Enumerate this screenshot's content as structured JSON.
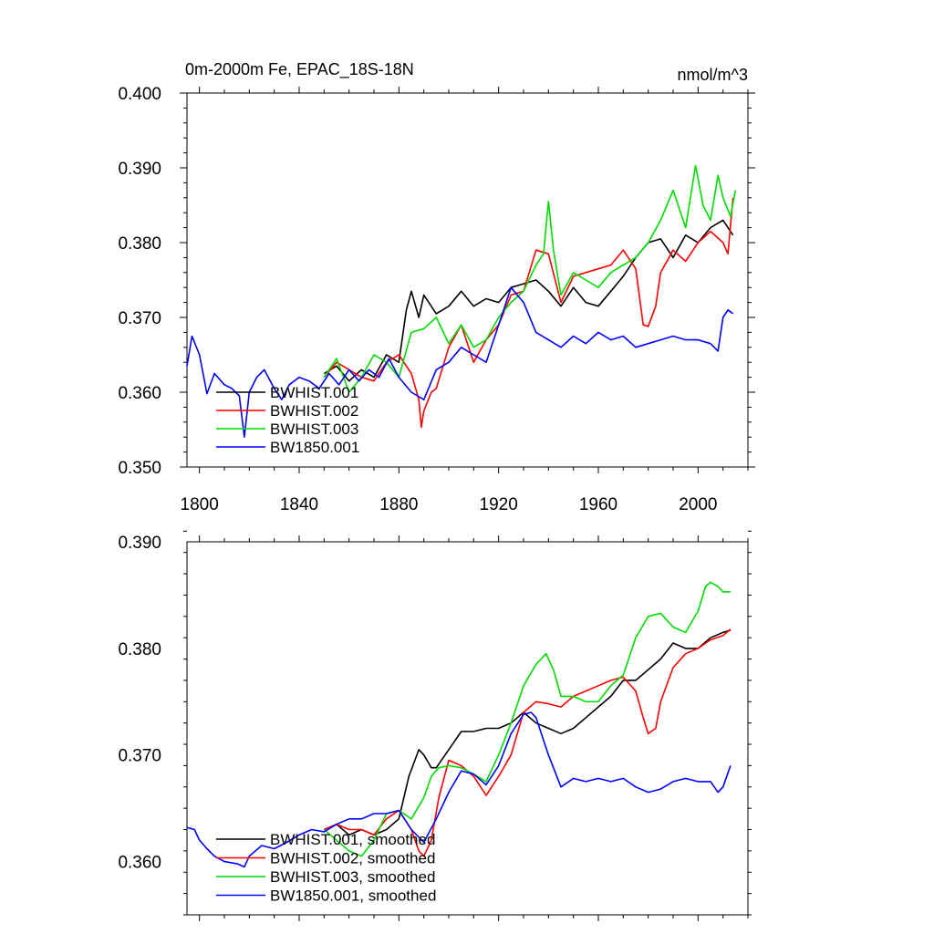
{
  "chart_data": [
    {
      "type": "line",
      "title": "0m-2000m Fe, EPAC_18S-18N",
      "units": "nmol/m^3",
      "xlim": [
        1795,
        2020
      ],
      "ylim": [
        0.35,
        0.4
      ],
      "xticks": [
        1800,
        1840,
        1880,
        1920,
        1960,
        2000
      ],
      "xtick_labels": [
        "1800",
        "1840",
        "1880",
        "1920",
        "1960",
        "2000"
      ],
      "yticks": [
        0.35,
        0.36,
        0.37,
        0.38,
        0.39,
        0.4
      ],
      "ytick_labels": [
        "0.350",
        "0.360",
        "0.370",
        "0.380",
        "0.390",
        "0.400"
      ],
      "legend_position": "bottom-left",
      "series": [
        {
          "name": "BWHIST.001",
          "color": "#000000",
          "x": [
            1850,
            1855,
            1860,
            1865,
            1870,
            1875,
            1880,
            1883,
            1885,
            1888,
            1890,
            1895,
            1900,
            1905,
            1910,
            1915,
            1920,
            1925,
            1930,
            1935,
            1940,
            1945,
            1950,
            1955,
            1960,
            1965,
            1970,
            1975,
            1980,
            1985,
            1990,
            1995,
            2000,
            2005,
            2010,
            2014
          ],
          "y": [
            0.3625,
            0.3635,
            0.3615,
            0.363,
            0.362,
            0.365,
            0.364,
            0.371,
            0.3735,
            0.37,
            0.373,
            0.3705,
            0.3715,
            0.3735,
            0.3715,
            0.3725,
            0.372,
            0.374,
            0.3745,
            0.375,
            0.3735,
            0.3715,
            0.374,
            0.372,
            0.3715,
            0.3735,
            0.3755,
            0.378,
            0.38,
            0.3805,
            0.378,
            0.381,
            0.38,
            0.382,
            0.383,
            0.381
          ]
        },
        {
          "name": "BWHIST.002",
          "color": "#ff0000",
          "x": [
            1850,
            1855,
            1860,
            1865,
            1870,
            1875,
            1880,
            1885,
            1888,
            1889,
            1890,
            1893,
            1895,
            1900,
            1905,
            1910,
            1915,
            1920,
            1925,
            1930,
            1935,
            1940,
            1945,
            1950,
            1955,
            1960,
            1965,
            1970,
            1975,
            1978,
            1980,
            1983,
            1985,
            1990,
            1995,
            2000,
            2005,
            2010,
            2012,
            2014
          ],
          "y": [
            0.362,
            0.364,
            0.363,
            0.362,
            0.3615,
            0.364,
            0.365,
            0.3625,
            0.359,
            0.3553,
            0.3575,
            0.36,
            0.3605,
            0.366,
            0.369,
            0.364,
            0.367,
            0.369,
            0.373,
            0.3735,
            0.379,
            0.3785,
            0.372,
            0.3755,
            0.376,
            0.3765,
            0.377,
            0.379,
            0.3765,
            0.369,
            0.3688,
            0.3715,
            0.376,
            0.379,
            0.3775,
            0.38,
            0.3815,
            0.38,
            0.3785,
            0.386
          ]
        },
        {
          "name": "BWHIST.003",
          "color": "#00dd00",
          "x": [
            1850,
            1855,
            1860,
            1865,
            1870,
            1875,
            1880,
            1885,
            1890,
            1895,
            1900,
            1905,
            1910,
            1915,
            1920,
            1925,
            1930,
            1935,
            1938,
            1940,
            1942,
            1945,
            1950,
            1955,
            1960,
            1965,
            1970,
            1975,
            1980,
            1985,
            1990,
            1995,
            1999,
            2002,
            2005,
            2008,
            2010,
            2013,
            2015
          ],
          "y": [
            0.362,
            0.3645,
            0.36,
            0.362,
            0.365,
            0.364,
            0.362,
            0.368,
            0.3685,
            0.37,
            0.3665,
            0.369,
            0.366,
            0.367,
            0.37,
            0.372,
            0.3735,
            0.377,
            0.3785,
            0.3855,
            0.379,
            0.373,
            0.376,
            0.375,
            0.374,
            0.376,
            0.377,
            0.378,
            0.38,
            0.383,
            0.387,
            0.382,
            0.3903,
            0.385,
            0.383,
            0.389,
            0.386,
            0.3835,
            0.387
          ]
        },
        {
          "name": "BW1850.001",
          "color": "#0000ff",
          "x": [
            1795,
            1797,
            1800,
            1803,
            1806,
            1810,
            1813,
            1816,
            1818,
            1820,
            1823,
            1826,
            1830,
            1833,
            1836,
            1840,
            1844,
            1848,
            1852,
            1856,
            1860,
            1864,
            1868,
            1872,
            1876,
            1880,
            1885,
            1890,
            1895,
            1900,
            1905,
            1910,
            1915,
            1920,
            1925,
            1930,
            1935,
            1940,
            1945,
            1950,
            1955,
            1960,
            1965,
            1970,
            1975,
            1980,
            1985,
            1990,
            1995,
            2000,
            2005,
            2008,
            2010,
            2012,
            2014
          ],
          "y": [
            0.3635,
            0.3675,
            0.365,
            0.3598,
            0.3625,
            0.361,
            0.3605,
            0.3595,
            0.354,
            0.36,
            0.362,
            0.363,
            0.3605,
            0.359,
            0.361,
            0.362,
            0.3615,
            0.3605,
            0.3625,
            0.361,
            0.363,
            0.3615,
            0.363,
            0.362,
            0.3645,
            0.362,
            0.36,
            0.359,
            0.363,
            0.364,
            0.366,
            0.365,
            0.364,
            0.369,
            0.374,
            0.372,
            0.368,
            0.367,
            0.366,
            0.3675,
            0.3665,
            0.368,
            0.367,
            0.3675,
            0.366,
            0.3665,
            0.367,
            0.3675,
            0.367,
            0.367,
            0.3665,
            0.3655,
            0.37,
            0.371,
            0.3705
          ]
        }
      ]
    },
    {
      "type": "line",
      "title": "",
      "xlim": [
        1795,
        2020
      ],
      "ylim": [
        0.355,
        0.39
      ],
      "xticks": [
        1800,
        1840,
        1880,
        1920,
        1960,
        2000
      ],
      "yticks": [
        0.36,
        0.37,
        0.38,
        0.39
      ],
      "ytick_labels": [
        "0.360",
        "0.370",
        "0.380",
        "0.390"
      ],
      "legend_position": "bottom-left",
      "series": [
        {
          "name": "BWHIST.001, smoothed",
          "color": "#000000",
          "x": [
            1850,
            1855,
            1860,
            1865,
            1870,
            1875,
            1880,
            1884,
            1888,
            1890,
            1893,
            1895,
            1900,
            1905,
            1910,
            1915,
            1920,
            1925,
            1930,
            1935,
            1940,
            1945,
            1950,
            1955,
            1960,
            1965,
            1970,
            1975,
            1980,
            1985,
            1990,
            1995,
            2000,
            2005,
            2010,
            2013
          ],
          "y": [
            0.363,
            0.3635,
            0.3625,
            0.363,
            0.3625,
            0.363,
            0.364,
            0.368,
            0.3705,
            0.37,
            0.3688,
            0.3688,
            0.3705,
            0.3722,
            0.3722,
            0.3725,
            0.3725,
            0.373,
            0.374,
            0.373,
            0.3725,
            0.372,
            0.3725,
            0.3735,
            0.3745,
            0.3755,
            0.377,
            0.377,
            0.378,
            0.379,
            0.3805,
            0.38,
            0.38,
            0.381,
            0.3815,
            0.3817
          ]
        },
        {
          "name": "BWHIST.002, smoothed",
          "color": "#ff0000",
          "x": [
            1850,
            1855,
            1860,
            1865,
            1870,
            1875,
            1880,
            1885,
            1888,
            1890,
            1893,
            1896,
            1900,
            1905,
            1910,
            1915,
            1920,
            1925,
            1930,
            1935,
            1940,
            1945,
            1950,
            1955,
            1960,
            1965,
            1970,
            1975,
            1978,
            1980,
            1983,
            1985,
            1990,
            1995,
            2000,
            2005,
            2010,
            2013
          ],
          "y": [
            0.363,
            0.3635,
            0.363,
            0.363,
            0.3625,
            0.364,
            0.3648,
            0.363,
            0.361,
            0.3605,
            0.362,
            0.366,
            0.3695,
            0.369,
            0.368,
            0.3662,
            0.368,
            0.37,
            0.374,
            0.375,
            0.3748,
            0.3745,
            0.3755,
            0.376,
            0.3765,
            0.377,
            0.3773,
            0.376,
            0.3735,
            0.372,
            0.3725,
            0.375,
            0.3782,
            0.3795,
            0.38,
            0.3808,
            0.3812,
            0.3818
          ]
        },
        {
          "name": "BWHIST.003, smoothed",
          "color": "#00dd00",
          "x": [
            1850,
            1855,
            1860,
            1865,
            1870,
            1875,
            1880,
            1885,
            1890,
            1893,
            1896,
            1900,
            1905,
            1910,
            1915,
            1920,
            1925,
            1930,
            1935,
            1939,
            1942,
            1945,
            1950,
            1955,
            1960,
            1965,
            1970,
            1975,
            1980,
            1985,
            1990,
            1995,
            2000,
            2003,
            2005,
            2008,
            2010,
            2013
          ],
          "y": [
            0.363,
            0.362,
            0.361,
            0.3605,
            0.362,
            0.3645,
            0.3648,
            0.364,
            0.366,
            0.368,
            0.3688,
            0.369,
            0.3688,
            0.3682,
            0.3675,
            0.37,
            0.373,
            0.3765,
            0.3785,
            0.3795,
            0.378,
            0.3755,
            0.3755,
            0.375,
            0.375,
            0.3765,
            0.3775,
            0.381,
            0.383,
            0.3833,
            0.382,
            0.3815,
            0.3835,
            0.3858,
            0.3862,
            0.3858,
            0.3853,
            0.3853
          ]
        },
        {
          "name": "BW1850.001, smoothed",
          "color": "#0000ff",
          "x": [
            1795,
            1798,
            1800,
            1803,
            1806,
            1810,
            1815,
            1818,
            1820,
            1825,
            1830,
            1835,
            1840,
            1845,
            1850,
            1855,
            1860,
            1865,
            1870,
            1875,
            1880,
            1885,
            1890,
            1895,
            1900,
            1905,
            1910,
            1915,
            1920,
            1925,
            1930,
            1933,
            1935,
            1940,
            1945,
            1950,
            1955,
            1960,
            1965,
            1970,
            1975,
            1980,
            1985,
            1990,
            1995,
            2000,
            2005,
            2008,
            2010,
            2013
          ],
          "y": [
            0.3632,
            0.363,
            0.362,
            0.3612,
            0.3605,
            0.36,
            0.3598,
            0.3595,
            0.3605,
            0.3615,
            0.3612,
            0.3618,
            0.3625,
            0.363,
            0.3628,
            0.3635,
            0.364,
            0.364,
            0.3645,
            0.3645,
            0.3648,
            0.363,
            0.3618,
            0.364,
            0.3665,
            0.3685,
            0.3682,
            0.3672,
            0.369,
            0.372,
            0.3738,
            0.374,
            0.3735,
            0.37,
            0.367,
            0.3678,
            0.3675,
            0.3678,
            0.3675,
            0.3678,
            0.367,
            0.3665,
            0.3668,
            0.3675,
            0.3678,
            0.3675,
            0.3675,
            0.3665,
            0.367,
            0.369
          ]
        }
      ]
    }
  ]
}
